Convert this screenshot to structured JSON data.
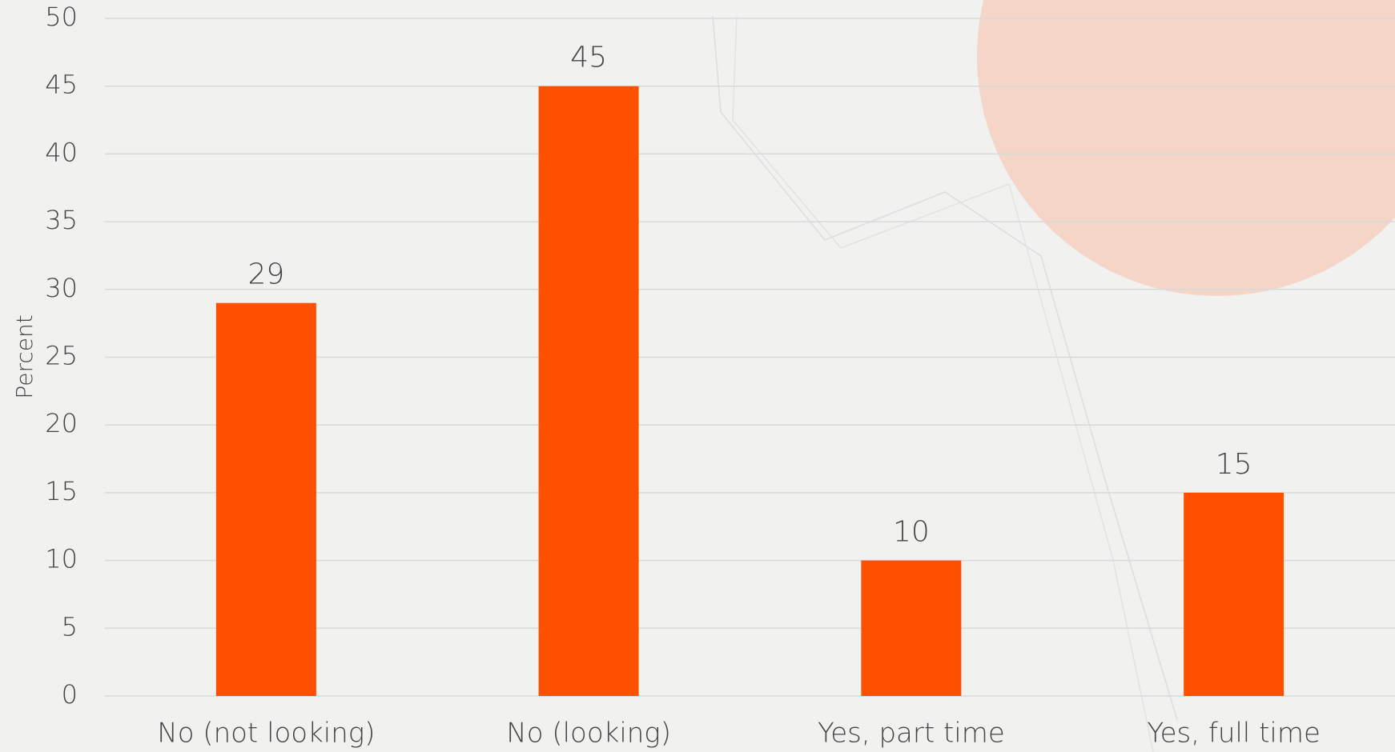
{
  "chart_data": {
    "type": "bar",
    "y_label": "Percent",
    "categories": [
      "No (not looking)",
      "No (looking)",
      "Yes, part time",
      "Yes, full time"
    ],
    "values": [
      29,
      45,
      10,
      15
    ],
    "color": "#ff5000",
    "ylim": [
      0,
      50
    ],
    "yticks": [
      0,
      5,
      10,
      15,
      20,
      25,
      30,
      35,
      40,
      45,
      50
    ],
    "grid": true
  }
}
